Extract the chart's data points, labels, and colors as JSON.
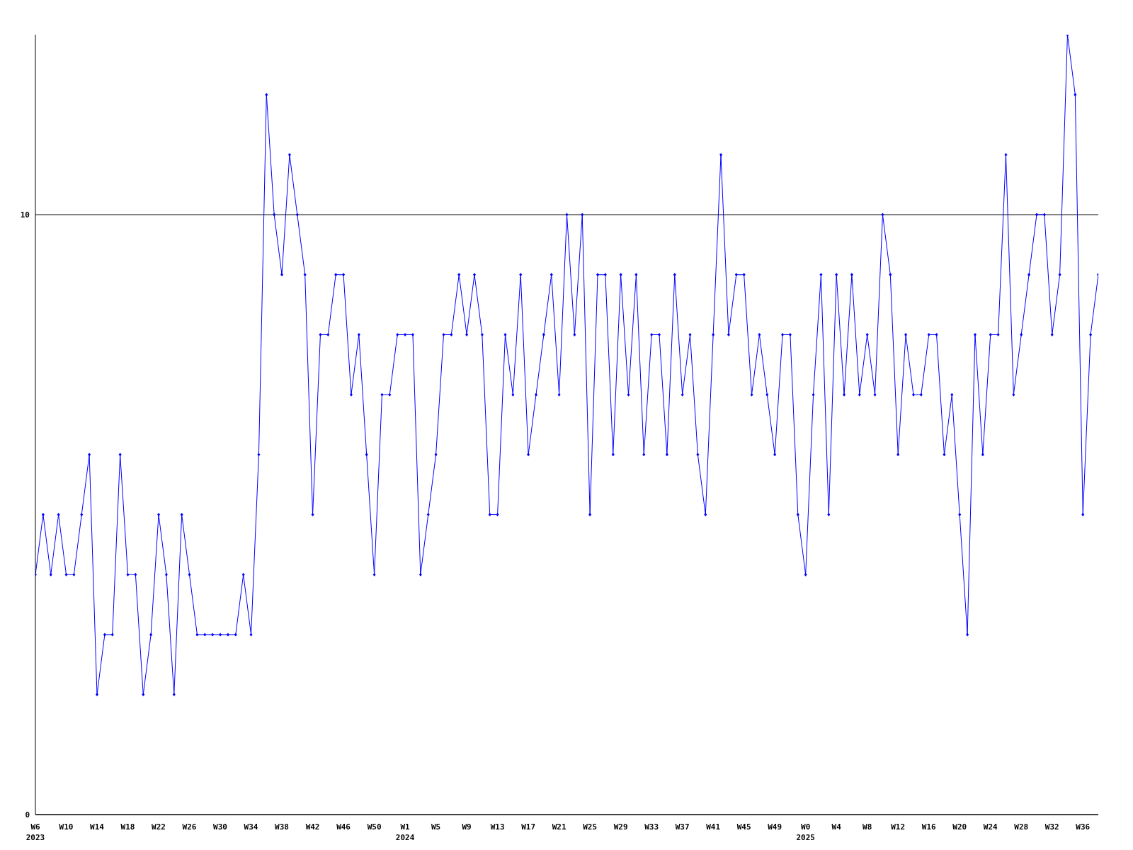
{
  "chart_data": {
    "type": "line",
    "categories": [
      "W6\n2023",
      null,
      null,
      null,
      "W10",
      null,
      null,
      null,
      "W14",
      null,
      null,
      null,
      "W18",
      null,
      null,
      null,
      "W22",
      null,
      null,
      null,
      "W26",
      null,
      null,
      null,
      "W30",
      null,
      null,
      null,
      "W34",
      null,
      null,
      null,
      "W38",
      null,
      null,
      null,
      "W42",
      null,
      null,
      null,
      "W46",
      null,
      null,
      null,
      "W50",
      null,
      null,
      null,
      "W1\n2024",
      null,
      null,
      null,
      "W5",
      null,
      null,
      null,
      "W9",
      null,
      null,
      null,
      "W13",
      null,
      null,
      null,
      "W17",
      null,
      null,
      null,
      "W21",
      null,
      null,
      null,
      "W25",
      null,
      null,
      null,
      "W29",
      null,
      null,
      null,
      "W33",
      null,
      null,
      null,
      "W37",
      null,
      null,
      null,
      "W41",
      null,
      null,
      null,
      "W45",
      null,
      null,
      null,
      "W49",
      null,
      null,
      null,
      "W0\n2025",
      null,
      null,
      null,
      "W4",
      null,
      null,
      null,
      "W8",
      null,
      null,
      null,
      "W12",
      null,
      null,
      null,
      "W16",
      null,
      null,
      null,
      "W20",
      null,
      null,
      null,
      "W24",
      null,
      null,
      null,
      "W28",
      null,
      null,
      null,
      "W32",
      null,
      null,
      null,
      "W36",
      null,
      null
    ],
    "series": [
      {
        "color": "#0000ff",
        "values": [
          4,
          5,
          4,
          5,
          4,
          4,
          5,
          6,
          2,
          3,
          3,
          6,
          4,
          4,
          2,
          3,
          5,
          4,
          2,
          5,
          4,
          3,
          3,
          3,
          3,
          3,
          3,
          4,
          3,
          6,
          12,
          10,
          9,
          11,
          10,
          9,
          5,
          8,
          8,
          9,
          9,
          7,
          8,
          6,
          4,
          7,
          7,
          8,
          8,
          8,
          4,
          5,
          6,
          8,
          8,
          9,
          8,
          9,
          8,
          5,
          5,
          8,
          7,
          9,
          6,
          7,
          8,
          9,
          7,
          10,
          8,
          10,
          5,
          9,
          9,
          6,
          9,
          7,
          9,
          6,
          8,
          8,
          6,
          9,
          7,
          8,
          6,
          5,
          8,
          11,
          8,
          9,
          9,
          7,
          8,
          7,
          6,
          8,
          8,
          5,
          4,
          7,
          9,
          5,
          9,
          7,
          9,
          7,
          8,
          7,
          10,
          9,
          6,
          8,
          7,
          7,
          8,
          8,
          6,
          7,
          5,
          3,
          8,
          6,
          8,
          8,
          11,
          7,
          8,
          9,
          10,
          10,
          8,
          9,
          13,
          12,
          5,
          8,
          9
        ]
      }
    ],
    "ylim": [
      0,
      13
    ],
    "yticks": [
      0,
      10
    ],
    "grid": "y",
    "legend": false,
    "marker": "diamond",
    "line_style": "solid"
  }
}
